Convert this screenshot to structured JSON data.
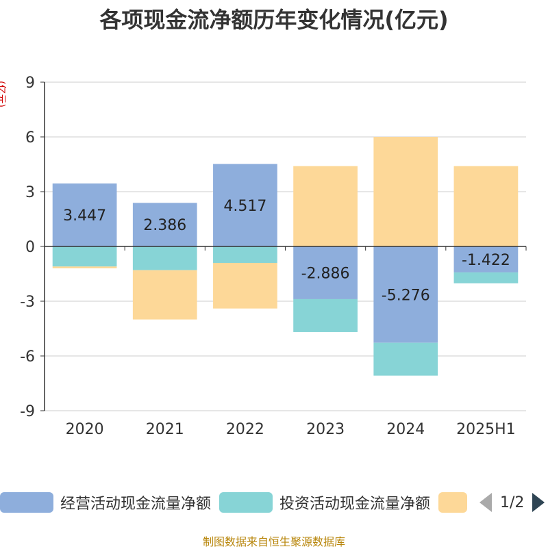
{
  "title": "各项现金流净额历年变化情况(亿元)",
  "source": "制图数据来自恒生聚源数据库",
  "legend_pager": "1/2",
  "chart_data": {
    "type": "bar",
    "stacked": true,
    "title": "各项现金流净额历年变化情况(亿元)",
    "ylabel": "(亿元)",
    "ylim": [
      -9,
      9
    ],
    "yticks": [
      9,
      6,
      3,
      0,
      -3,
      -6,
      -9
    ],
    "categories": [
      "2020",
      "2021",
      "2022",
      "2023",
      "2024",
      "2025H1"
    ],
    "series": [
      {
        "name": "经营活动现金流量净额",
        "color": "#8eaedc",
        "values": [
          3.447,
          2.386,
          4.517,
          -2.886,
          -5.276,
          -1.422
        ],
        "labels": [
          "3.447",
          "2.386",
          "4.517",
          "-2.886",
          "-5.276",
          "-1.422"
        ]
      },
      {
        "name": "投资活动现金流量净额",
        "color": "#87d4d6",
        "values": [
          -1.1,
          -1.3,
          -0.9,
          -1.8,
          -1.8,
          -0.6
        ]
      },
      {
        "name": "",
        "color": "#fdd898",
        "values": [
          -0.1,
          -2.7,
          -2.5,
          4.4,
          6.0,
          4.4
        ]
      }
    ],
    "grid": true,
    "legend_position": "bottom"
  }
}
